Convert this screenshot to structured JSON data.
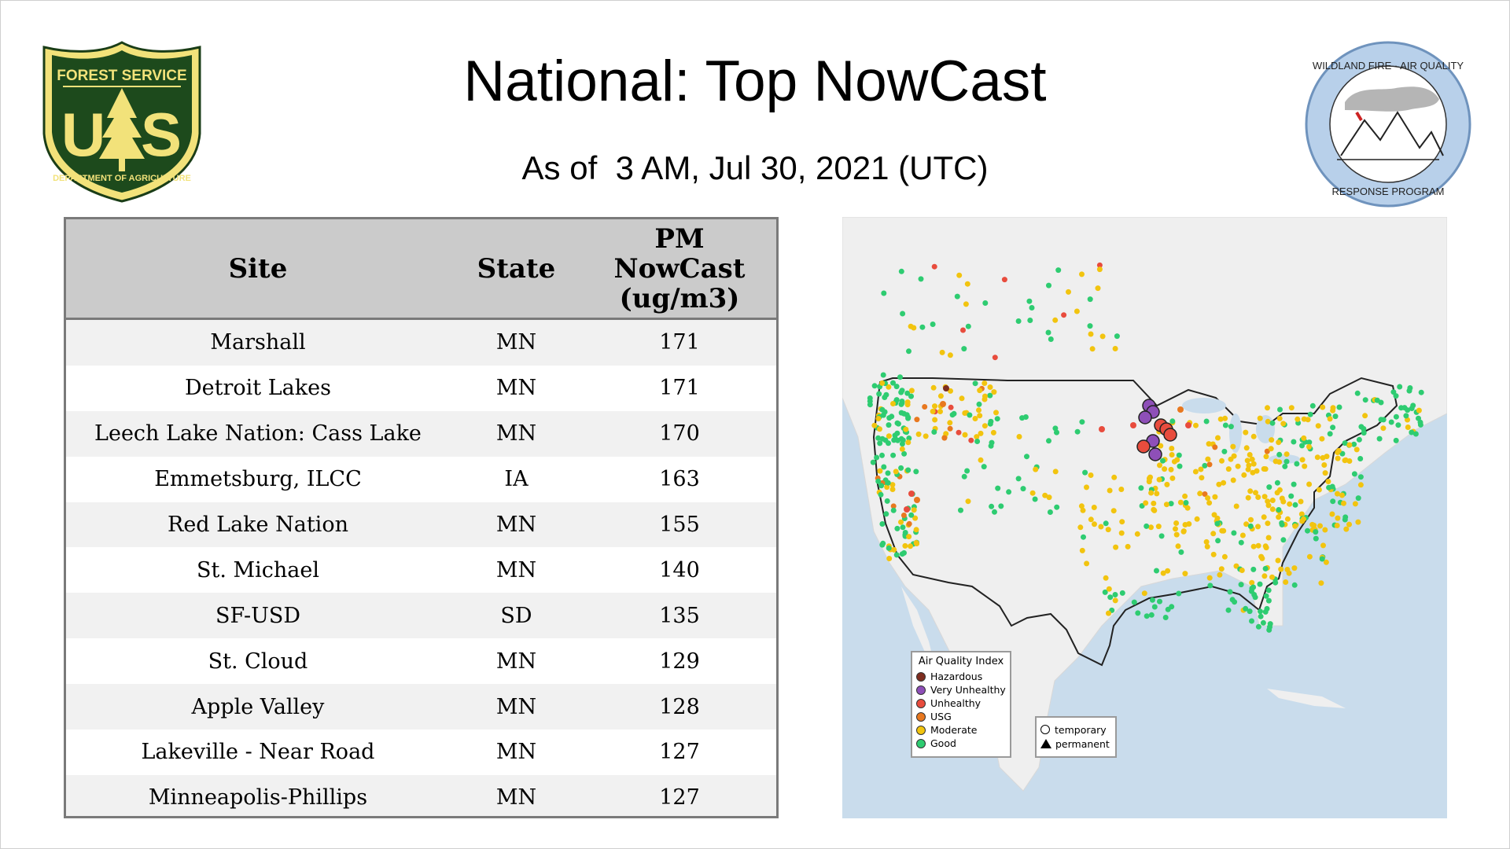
{
  "title": "National: Top NowCast",
  "subtitle": "As of  3 AM, Jul 30, 2021 (UTC)",
  "logos": {
    "usfs": {
      "top_text": "FOREST SERVICE",
      "bottom_text": "DEPARTMENT OF AGRICULTURE",
      "letters": "US"
    },
    "wfaq": {
      "top_text": "WILDLAND FIRE · AIR QUALITY",
      "bottom_text": "RESPONSE PROGRAM"
    }
  },
  "table": {
    "headers": {
      "site": "Site",
      "state": "State",
      "pm_line1": "PM",
      "pm_line2": "NowCast",
      "pm_line3": "(ug/m3)"
    },
    "rows": [
      {
        "site": "Marshall",
        "state": "MN",
        "pm": "171"
      },
      {
        "site": "Detroit Lakes",
        "state": "MN",
        "pm": "171"
      },
      {
        "site": "Leech Lake Nation: Cass Lake",
        "state": "MN",
        "pm": "170"
      },
      {
        "site": "Emmetsburg, ILCC",
        "state": "IA",
        "pm": "163"
      },
      {
        "site": "Red Lake Nation",
        "state": "MN",
        "pm": "155"
      },
      {
        "site": "St. Michael",
        "state": "MN",
        "pm": "140"
      },
      {
        "site": "SF-USD",
        "state": "SD",
        "pm": "135"
      },
      {
        "site": "St. Cloud",
        "state": "MN",
        "pm": "129"
      },
      {
        "site": "Apple Valley",
        "state": "MN",
        "pm": "128"
      },
      {
        "site": "Lakeville - Near Road",
        "state": "MN",
        "pm": "127"
      },
      {
        "site": "Minneapolis-Phillips",
        "state": "MN",
        "pm": "127"
      }
    ]
  },
  "map": {
    "legend": {
      "title": "Air Quality Index",
      "items": [
        {
          "label": "Hazardous",
          "color": "#7e2d1f"
        },
        {
          "label": "Very Unhealthy",
          "color": "#8e4fb8"
        },
        {
          "label": "Unhealthy",
          "color": "#e84c3d"
        },
        {
          "label": "USG",
          "color": "#e8781f"
        },
        {
          "label": "Moderate",
          "color": "#f2c40f"
        },
        {
          "label": "Good",
          "color": "#2ecc71"
        }
      ]
    },
    "shape_legend": {
      "temporary": "temporary",
      "permanent": "permanent"
    },
    "colors": {
      "ocean": "#c9dcec",
      "land": "#efefef",
      "border": "#222222"
    }
  }
}
